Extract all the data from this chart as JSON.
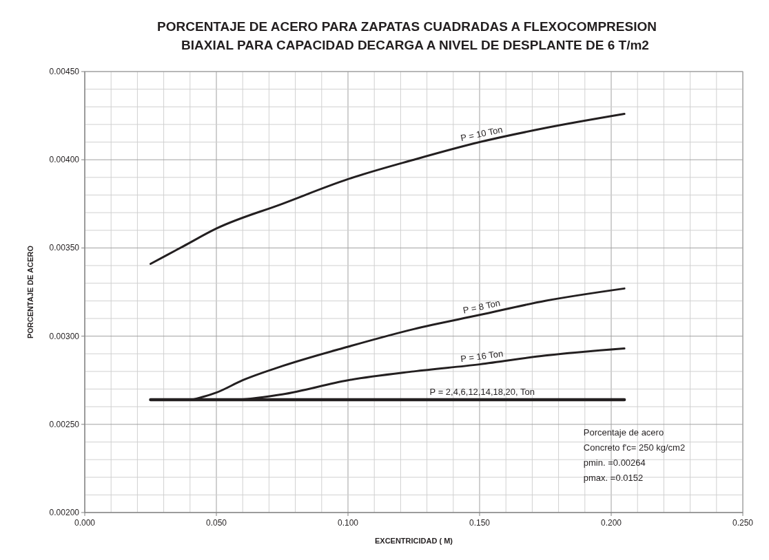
{
  "chart_data": {
    "type": "line",
    "title": "PORCENTAJE DE ACERO  PARA ZAPATAS CUADRADAS A FLEXOCOMPRESION\nBIAXIAL PARA CAPACIDAD DECARGA  A NIVEL DE DESPLANTE DE  6 T/m2",
    "xlabel": "EXCENTRICIDAD  ( M)",
    "ylabel": "PORCENTAJE DE ACERO",
    "xlim": [
      0,
      0.25
    ],
    "ylim": [
      0.002,
      0.0045
    ],
    "xticks": [
      {
        "value": 0,
        "label": "0.000"
      },
      {
        "value": 0.01,
        "label": null
      },
      {
        "value": 0.02,
        "label": null
      },
      {
        "value": 0.03,
        "label": null
      },
      {
        "value": 0.04,
        "label": null
      },
      {
        "value": 0.05,
        "label": "0.050"
      },
      {
        "value": 0.06,
        "label": null
      },
      {
        "value": 0.07,
        "label": null
      },
      {
        "value": 0.08,
        "label": null
      },
      {
        "value": 0.09,
        "label": null
      },
      {
        "value": 0.1,
        "label": "0.100"
      },
      {
        "value": 0.11,
        "label": null
      },
      {
        "value": 0.12,
        "label": null
      },
      {
        "value": 0.13,
        "label": null
      },
      {
        "value": 0.14,
        "label": null
      },
      {
        "value": 0.15,
        "label": "0.150"
      },
      {
        "value": 0.16,
        "label": null
      },
      {
        "value": 0.17,
        "label": null
      },
      {
        "value": 0.18,
        "label": null
      },
      {
        "value": 0.19,
        "label": null
      },
      {
        "value": 0.2,
        "label": "0.200"
      },
      {
        "value": 0.21,
        "label": null
      },
      {
        "value": 0.22,
        "label": null
      },
      {
        "value": 0.23,
        "label": null
      },
      {
        "value": 0.24,
        "label": null
      },
      {
        "value": 0.25,
        "label": "0.250"
      }
    ],
    "yticks": [
      {
        "value": 0.002,
        "label": "0.00200"
      },
      {
        "value": 0.0021,
        "label": null
      },
      {
        "value": 0.0022,
        "label": null
      },
      {
        "value": 0.0023,
        "label": null
      },
      {
        "value": 0.0024,
        "label": null
      },
      {
        "value": 0.0025,
        "label": "0.00250"
      },
      {
        "value": 0.0026,
        "label": null
      },
      {
        "value": 0.0027,
        "label": null
      },
      {
        "value": 0.0028,
        "label": null
      },
      {
        "value": 0.0029,
        "label": null
      },
      {
        "value": 0.003,
        "label": "0.00300"
      },
      {
        "value": 0.0031,
        "label": null
      },
      {
        "value": 0.0032,
        "label": null
      },
      {
        "value": 0.0033,
        "label": null
      },
      {
        "value": 0.0034,
        "label": null
      },
      {
        "value": 0.0035,
        "label": "0.00350"
      },
      {
        "value": 0.0036,
        "label": null
      },
      {
        "value": 0.0037,
        "label": null
      },
      {
        "value": 0.0038,
        "label": null
      },
      {
        "value": 0.0039,
        "label": null
      },
      {
        "value": 0.004,
        "label": "0.00400"
      },
      {
        "value": 0.0041,
        "label": null
      },
      {
        "value": 0.0042,
        "label": null
      },
      {
        "value": 0.0043,
        "label": null
      },
      {
        "value": 0.0044,
        "label": null
      },
      {
        "value": 0.0045,
        "label": "0.00450"
      }
    ],
    "grid": true,
    "marker": "none",
    "line_style": "solid",
    "series": [
      {
        "name": "P = 10 Ton",
        "color": "#231f20",
        "x": [
          0.025,
          0.0375,
          0.05,
          0.075,
          0.1,
          0.125,
          0.15,
          0.175,
          0.205
        ],
        "values": [
          0.00341,
          0.00351,
          0.00361,
          0.00375,
          0.00389,
          0.004,
          0.0041,
          0.00418,
          0.00426
        ]
      },
      {
        "name": "P = 8 Ton",
        "color": "#231f20",
        "x": [
          0.025,
          0.035,
          0.04,
          0.045,
          0.05,
          0.06,
          0.075,
          0.1,
          0.125,
          0.15,
          0.175,
          0.205
        ],
        "values": [
          0.00264,
          0.00264,
          0.00264,
          0.002656,
          0.00268,
          0.00275,
          0.00283,
          0.00294,
          0.00304,
          0.00312,
          0.0032,
          0.00327
        ]
      },
      {
        "name": "P = 16 Ton",
        "color": "#231f20",
        "x": [
          0.025,
          0.057,
          0.075,
          0.1,
          0.125,
          0.15,
          0.175,
          0.205
        ],
        "values": [
          0.00264,
          0.00264,
          0.00267,
          0.00275,
          0.0028,
          0.00284,
          0.00289,
          0.00293
        ]
      },
      {
        "name": "P = 2,4,6,12,14,18,20, Ton",
        "color": "#231f20",
        "x": [
          0.025,
          0.205
        ],
        "values": [
          0.00264,
          0.00264
        ]
      }
    ],
    "annotations": [
      "Porcentaje de acero",
      "Concreto f'c= 250 kg/cm2",
      "pmin. =0.00264",
      "pmax. =0.0152"
    ]
  }
}
